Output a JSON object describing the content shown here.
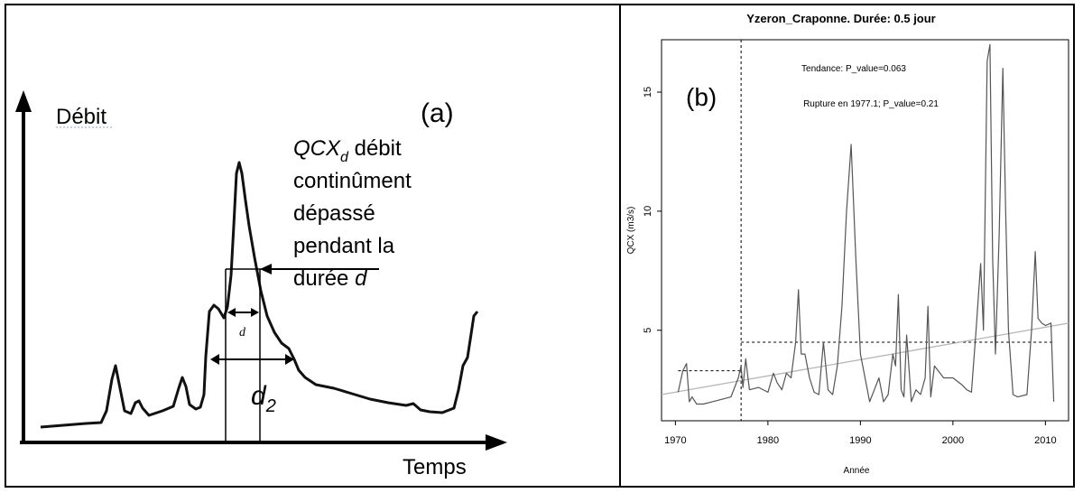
{
  "panel_a": {
    "panel_label": "(a)",
    "y_axis_label": "Débit",
    "x_axis_label": "Temps",
    "annotation_symbol": "QCX",
    "annotation_subscript": "d",
    "annotation_line1_rest": " débit",
    "annotation_line2": "continûment",
    "annotation_line3": "dépassé",
    "annotation_line4": "pendant la",
    "annotation_line5_prefix": "durée ",
    "annotation_line5_var": "d",
    "d_label": "d",
    "d2_label_main": "d",
    "d2_label_sub": "2",
    "colors": {
      "curve": "#111111",
      "axis": "#000000"
    }
  },
  "chart_data": {
    "type": "line",
    "title": "Yzeron_Craponne. Durée: 0.5 jour",
    "panel_label": "(b)",
    "xlabel": "Année",
    "ylabel": "QCX (m3/s)",
    "xlim": [
      1968.5,
      2012.5
    ],
    "ylim": [
      1.2,
      17.2
    ],
    "x_ticks": [
      1970,
      1980,
      1990,
      2000,
      2010
    ],
    "y_ticks": [
      5,
      10,
      15
    ],
    "annotations": [
      "Tendance: P_value=0.063",
      "Rupture en 1977.1; P_value=0.21"
    ],
    "rupture_year": 1977.1,
    "mean_before": 3.3,
    "mean_after": 4.5,
    "trend_line": {
      "x": [
        1968.5,
        2012.5
      ],
      "y": [
        2.3,
        5.3
      ]
    },
    "series": [
      {
        "x": [
          1970.3,
          1970.8,
          1971.2,
          1971.5,
          1971.8,
          1972.3,
          1973,
          1974,
          1975,
          1976,
          1976.8,
          1977.1,
          1977.3,
          1977.6,
          1978,
          1979,
          1980,
          1980.6,
          1981,
          1981.5,
          1982,
          1982.5,
          1983,
          1983.3,
          1983.6,
          1984,
          1984.5,
          1985,
          1985.5,
          1986,
          1986.5,
          1987,
          1987.5,
          1988,
          1988.5,
          1989,
          1989.5,
          1990,
          1990.5,
          1991,
          1991.5,
          1992,
          1992.5,
          1993,
          1993.5,
          1993.8,
          1994.1,
          1994.4,
          1994.7,
          1995,
          1995.5,
          1996,
          1996.5,
          1997,
          1997.3,
          1997.6,
          1998,
          1999,
          2000,
          2001,
          2001.5,
          2002,
          2002.5,
          2003,
          2003.3,
          2003.7,
          2004,
          2004.3,
          2004.6,
          2005,
          2005.4,
          2005.7,
          2006,
          2006.5,
          2007,
          2008,
          2008.5,
          2008.9,
          2009.2,
          2009.6,
          2010,
          2010.6,
          2010.9
        ],
        "values": [
          2.4,
          3.3,
          3.6,
          2.0,
          2.2,
          1.9,
          1.9,
          2.0,
          2.1,
          2.2,
          3.0,
          3.5,
          2.6,
          3.8,
          2.5,
          2.6,
          2.4,
          3.2,
          2.8,
          2.5,
          3.2,
          3.0,
          4.5,
          6.7,
          4.0,
          4.0,
          3.0,
          2.4,
          2.3,
          4.5,
          2.5,
          2.3,
          3.5,
          6.0,
          10.0,
          12.8,
          8.0,
          4.0,
          3.0,
          2.0,
          2.5,
          3.0,
          2.0,
          2.3,
          4.0,
          3.5,
          6.5,
          2.5,
          2.2,
          4.8,
          2.0,
          2.5,
          2.3,
          3.0,
          6.0,
          2.2,
          3.5,
          3.0,
          3.0,
          2.7,
          2.5,
          2.4,
          5.0,
          7.8,
          5.0,
          16.3,
          17.0,
          8.0,
          4.0,
          9.0,
          16.0,
          10.0,
          5.0,
          2.3,
          2.2,
          2.3,
          5.0,
          8.3,
          5.5,
          5.3,
          5.2,
          5.3,
          2.0
        ]
      }
    ]
  }
}
